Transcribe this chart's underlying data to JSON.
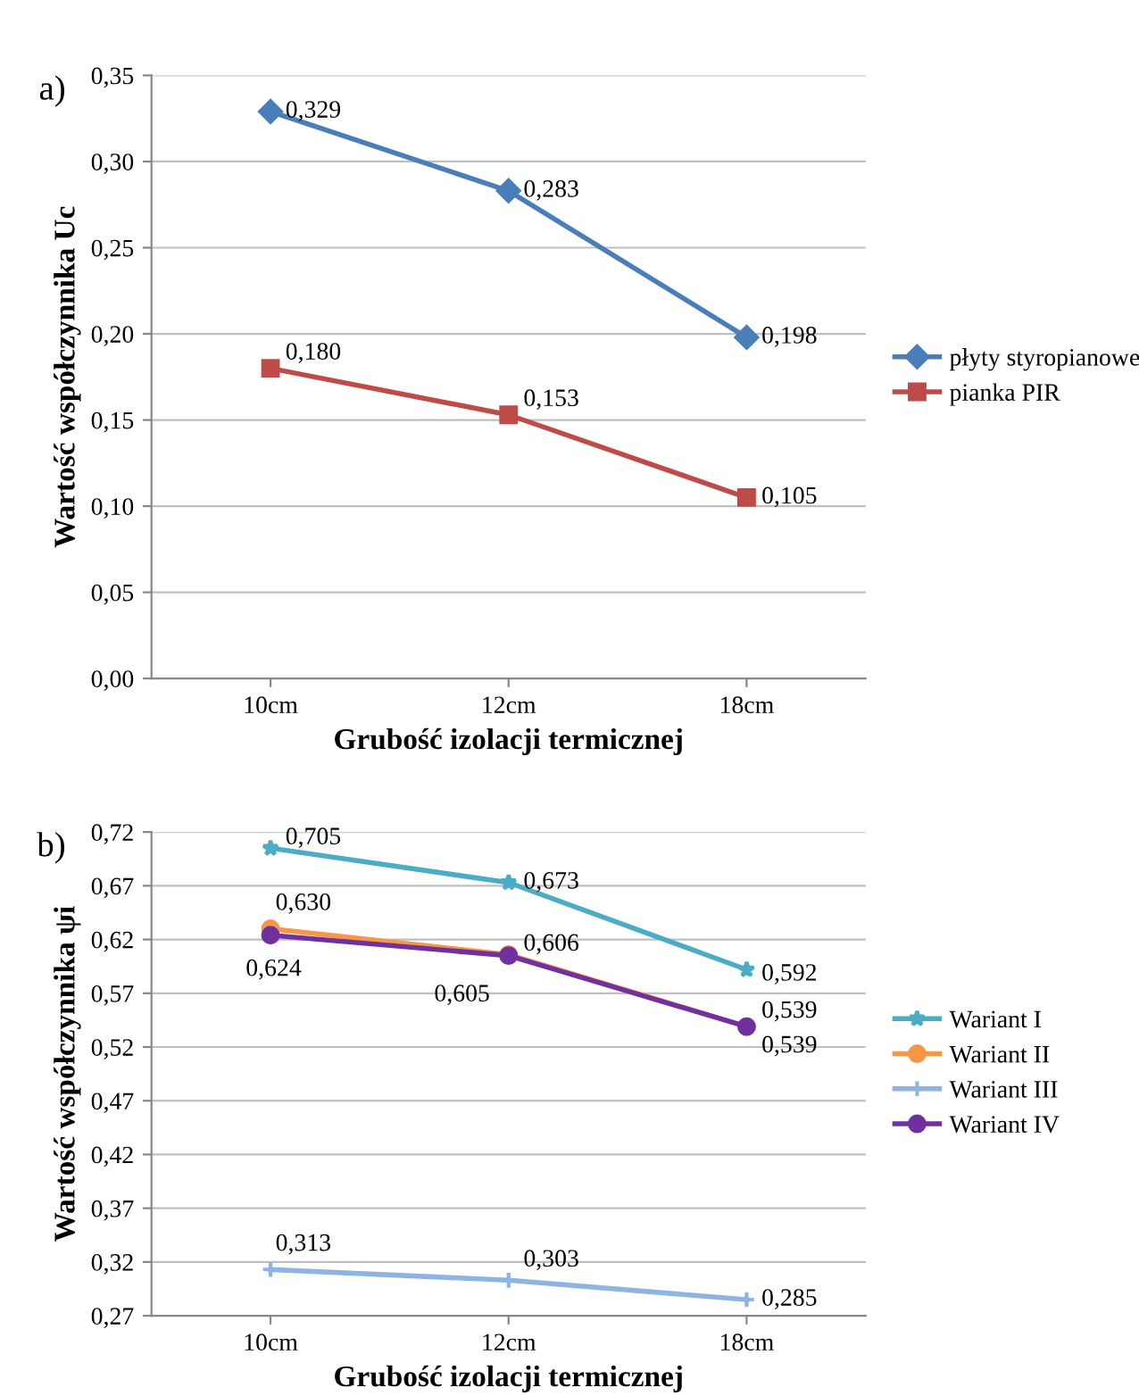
{
  "chart_data": [
    {
      "type": "line",
      "annotations": [
        "a)"
      ],
      "ylabel": "Wartość współczynnika Uc",
      "xlabel": "Grubość izolacji termicznej",
      "categories": [
        "10cm",
        "12cm",
        "18cm"
      ],
      "series": [
        {
          "name": "płyty styropianowe",
          "color": "#4a7ebb",
          "marker": "diamond",
          "values": [
            0.329,
            0.283,
            0.198
          ],
          "value_labels": [
            "0,329",
            "0,283",
            "0,198"
          ]
        },
        {
          "name": "pianka PIR",
          "color": "#be4b48",
          "marker": "square",
          "values": [
            0.18,
            0.153,
            0.105
          ],
          "value_labels": [
            "0,180",
            "0,153",
            "0,105"
          ]
        }
      ],
      "ylim": [
        0,
        0.35
      ],
      "yticks": [
        {
          "value": 0,
          "label": "0,00"
        },
        {
          "value": 0.05,
          "label": "0,05"
        },
        {
          "value": 0.1,
          "label": "0,10"
        },
        {
          "value": 0.15,
          "label": "0,15"
        },
        {
          "value": 0.2,
          "label": "0,20"
        },
        {
          "value": 0.25,
          "label": "0,25"
        },
        {
          "value": 0.3,
          "label": "0,30"
        },
        {
          "value": 0.35,
          "label": "0,35"
        }
      ],
      "grid": "y",
      "legend": "right",
      "line_style": "solid"
    },
    {
      "type": "line",
      "annotations": [
        "b)"
      ],
      "ylabel": "Wartość współczynnika ψi",
      "xlabel": "Grubość izolacji termicznej",
      "categories": [
        "10cm",
        "12cm",
        "18cm"
      ],
      "series": [
        {
          "name": "Wariant I",
          "color": "#4bacc6",
          "marker": "star",
          "values": [
            0.705,
            0.673,
            0.592
          ],
          "value_labels": [
            "0,705",
            "0,673",
            "0,592"
          ]
        },
        {
          "name": "Wariant II",
          "color": "#f79646",
          "marker": "circle",
          "values": [
            0.63,
            0.606,
            0.539
          ],
          "value_labels": [
            "0,630",
            "0,606",
            "0,539"
          ]
        },
        {
          "name": "Wariant III",
          "color": "#8eb4e3",
          "marker": "cross",
          "values": [
            0.313,
            0.303,
            0.285
          ],
          "value_labels": [
            "0,313",
            "0,303",
            "0,285"
          ]
        },
        {
          "name": "Wariant IV",
          "color": "#7030a0",
          "marker": "circle",
          "values": [
            0.624,
            0.605,
            0.539
          ],
          "value_labels": [
            "0,624",
            "0,605",
            "0,539"
          ]
        }
      ],
      "ylim": [
        0.27,
        0.72
      ],
      "yticks": [
        {
          "value": 0.27,
          "label": "0,27"
        },
        {
          "value": 0.32,
          "label": "0,32"
        },
        {
          "value": 0.37,
          "label": "0,37"
        },
        {
          "value": 0.42,
          "label": "0,42"
        },
        {
          "value": 0.47,
          "label": "0,47"
        },
        {
          "value": 0.52,
          "label": "0,52"
        },
        {
          "value": 0.57,
          "label": "0,57"
        },
        {
          "value": 0.62,
          "label": "0,62"
        },
        {
          "value": 0.67,
          "label": "0,67"
        },
        {
          "value": 0.72,
          "label": "0,72"
        }
      ],
      "grid": "y",
      "legend": "right",
      "line_style": "solid"
    }
  ]
}
